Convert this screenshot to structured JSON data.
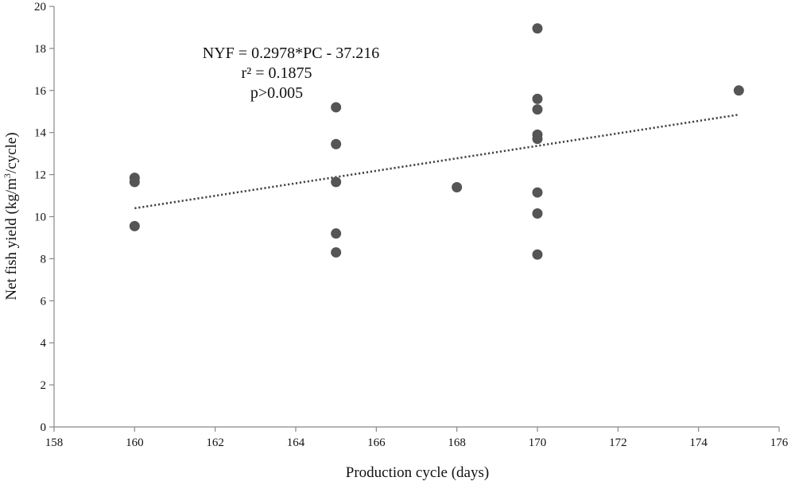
{
  "chart_data": {
    "type": "scatter",
    "xlabel": "Production cycle  (days)",
    "ylabel_parts": [
      "Net  fish yield (kg/m",
      "3",
      "/cycle)"
    ],
    "xlim": [
      158,
      176
    ],
    "ylim": [
      0,
      20
    ],
    "xticks": [
      158,
      160,
      162,
      164,
      166,
      168,
      170,
      172,
      174,
      176
    ],
    "yticks": [
      0,
      2,
      4,
      6,
      8,
      10,
      12,
      14,
      16,
      18,
      20
    ],
    "grid": false,
    "legend": false,
    "annotations": [
      "NYF = 0.2978*PC - 37.216",
      "r² = 0.1875",
      "p>0.005"
    ],
    "trendline": {
      "style": "dotted",
      "x": [
        160,
        175
      ],
      "y": [
        10.4,
        14.85
      ]
    },
    "points": [
      {
        "x": 160,
        "y": 11.85
      },
      {
        "x": 160,
        "y": 11.65
      },
      {
        "x": 160,
        "y": 9.55
      },
      {
        "x": 165,
        "y": 15.2
      },
      {
        "x": 165,
        "y": 13.45
      },
      {
        "x": 165,
        "y": 11.65
      },
      {
        "x": 165,
        "y": 9.2
      },
      {
        "x": 165,
        "y": 8.3
      },
      {
        "x": 168,
        "y": 11.4
      },
      {
        "x": 170,
        "y": 18.95
      },
      {
        "x": 170,
        "y": 15.6
      },
      {
        "x": 170,
        "y": 15.1
      },
      {
        "x": 170,
        "y": 13.9
      },
      {
        "x": 170,
        "y": 13.7
      },
      {
        "x": 170,
        "y": 11.15
      },
      {
        "x": 170,
        "y": 10.15
      },
      {
        "x": 170,
        "y": 8.2
      },
      {
        "x": 175,
        "y": 16.0
      }
    ],
    "colors": {
      "marker": "#555555",
      "trendline": "#444444",
      "axis": "#888888"
    }
  }
}
